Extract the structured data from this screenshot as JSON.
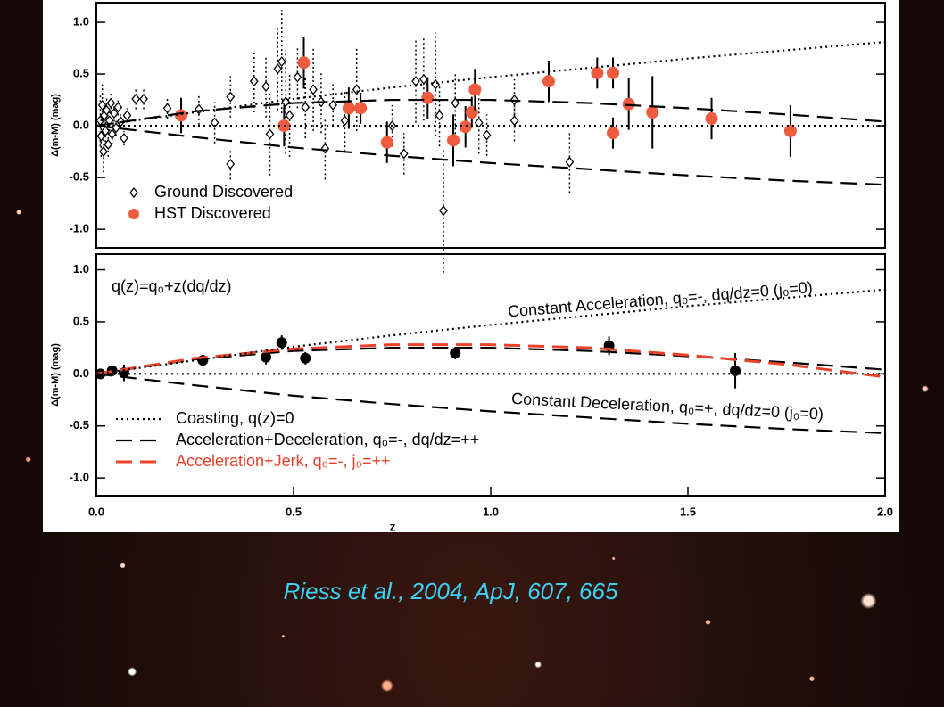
{
  "chart_data": [
    {
      "type": "scatter",
      "y_label": "Δ(m-M) (mag)",
      "xlim": [
        0,
        2.0
      ],
      "ylim": [
        -1.18,
        1.19
      ],
      "yticks": [
        {
          "value": 1.0,
          "label": "1.0"
        },
        {
          "value": 0.5,
          "label": "0.5"
        },
        {
          "value": 0.0,
          "label": "0.0"
        },
        {
          "value": -0.5,
          "label": "-0.5"
        },
        {
          "value": -1.0,
          "label": "-1.0"
        }
      ],
      "legend": "lower left",
      "series": [
        {
          "name": "Ground Discovered",
          "kind": "points",
          "marker": "diamond",
          "color": "#000000",
          "error_dash": true,
          "x": [
            0.01,
            0.012,
            0.015,
            0.018,
            0.02,
            0.023,
            0.026,
            0.03,
            0.033,
            0.037,
            0.04,
            0.045,
            0.05,
            0.055,
            0.062,
            0.07,
            0.078,
            0.1,
            0.12,
            0.18,
            0.26,
            0.3,
            0.34,
            0.34,
            0.4,
            0.43,
            0.44,
            0.46,
            0.47,
            0.48,
            0.49,
            0.51,
            0.53,
            0.55,
            0.57,
            0.58,
            0.6,
            0.63,
            0.66,
            0.75,
            0.78,
            0.81,
            0.83,
            0.86,
            0.87,
            0.88,
            0.91,
            0.97,
            0.99,
            1.06,
            1.06,
            1.2
          ],
          "values": [
            0.05,
            -0.1,
            0.2,
            -0.25,
            0.1,
            -0.05,
            0.15,
            -0.18,
            0.05,
            0.22,
            -0.08,
            0.12,
            -0.02,
            0.18,
            0.04,
            -0.12,
            0.1,
            0.26,
            0.26,
            0.17,
            0.16,
            0.03,
            0.28,
            -0.37,
            0.43,
            0.38,
            -0.08,
            0.55,
            0.62,
            0.23,
            0.1,
            0.47,
            0.18,
            0.35,
            0.23,
            -0.22,
            0.2,
            0.05,
            0.35,
            0.0,
            -0.27,
            0.43,
            0.45,
            0.4,
            0.1,
            -0.82,
            0.22,
            0.03,
            -0.09,
            0.25,
            0.05,
            -0.35
          ],
          "errors": [
            0.25,
            0.2,
            0.2,
            0.2,
            0.15,
            0.15,
            0.12,
            0.12,
            0.1,
            0.1,
            0.1,
            0.08,
            0.08,
            0.08,
            0.07,
            0.07,
            0.07,
            0.1,
            0.1,
            0.1,
            0.15,
            0.2,
            0.2,
            0.15,
            0.3,
            0.3,
            0.4,
            0.4,
            0.5,
            0.5,
            0.4,
            0.3,
            0.3,
            0.4,
            0.3,
            0.3,
            0.2,
            0.3,
            0.4,
            0.2,
            0.2,
            0.4,
            0.4,
            0.5,
            0.3,
            0.6,
            0.3,
            0.3,
            0.2,
            0.2,
            0.2,
            0.3
          ]
        },
        {
          "name": "HST Discovered",
          "kind": "points",
          "marker": "circle",
          "color": "#ef5b3e",
          "error_dash": false,
          "x": [
            0.215,
            0.476,
            0.526,
            0.64,
            0.67,
            0.737,
            0.84,
            0.905,
            0.936,
            0.952,
            0.96,
            1.147,
            1.27,
            1.31,
            1.31,
            1.35,
            1.41,
            1.56,
            1.76
          ],
          "values": [
            0.1,
            0.0,
            0.61,
            0.17,
            0.17,
            -0.16,
            0.27,
            -0.14,
            -0.01,
            0.13,
            0.35,
            0.43,
            0.51,
            0.51,
            -0.07,
            0.21,
            0.13,
            0.07,
            -0.05
          ],
          "errors": [
            0.17,
            0.2,
            0.25,
            0.2,
            0.15,
            0.2,
            0.2,
            0.25,
            0.2,
            0.15,
            0.2,
            0.2,
            0.15,
            0.15,
            0.15,
            0.25,
            0.35,
            0.2,
            0.25
          ]
        },
        {
          "kind": "line",
          "dash": "dotted",
          "color": "#000000",
          "x": [
            0,
            2.0
          ],
          "values": [
            0,
            0
          ]
        },
        {
          "kind": "line",
          "dash": "dotted",
          "color": "#000000",
          "x": [
            0,
            0.25,
            0.5,
            0.75,
            1.0,
            1.25,
            1.5,
            1.75,
            2.0
          ],
          "values": [
            0,
            0.13,
            0.26,
            0.37,
            0.47,
            0.56,
            0.65,
            0.73,
            0.81
          ]
        },
        {
          "kind": "line",
          "dash": "dashed",
          "color": "#000000",
          "x": [
            0,
            0.25,
            0.5,
            0.75,
            1.0,
            1.25,
            1.5,
            1.75,
            2.0
          ],
          "values": [
            0,
            0.14,
            0.22,
            0.25,
            0.25,
            0.22,
            0.17,
            0.11,
            0.04
          ]
        },
        {
          "kind": "line",
          "dash": "dashed",
          "color": "#000000",
          "x": [
            0,
            0.25,
            0.5,
            0.75,
            1.0,
            1.25,
            1.5,
            1.75,
            2.0
          ],
          "values": [
            0,
            -0.11,
            -0.21,
            -0.29,
            -0.36,
            -0.42,
            -0.48,
            -0.53,
            -0.57
          ]
        }
      ]
    },
    {
      "type": "scatter",
      "y_label": "Δ(m-M) (mag)",
      "x_label": "z",
      "xlim": [
        0,
        2.0
      ],
      "ylim": [
        -1.17,
        1.15
      ],
      "xticks": [
        {
          "value": 0,
          "label": "0.0"
        },
        {
          "value": 0.5,
          "label": "0.5"
        },
        {
          "value": 1.0,
          "label": "1.0"
        },
        {
          "value": 1.5,
          "label": "1.5"
        },
        {
          "value": 2.0,
          "label": "2.0"
        }
      ],
      "yticks": [
        {
          "value": 1.0,
          "label": "1.0"
        },
        {
          "value": 0.5,
          "label": "0.5"
        },
        {
          "value": 0.0,
          "label": "0.0"
        },
        {
          "value": -0.5,
          "label": "-0.5"
        },
        {
          "value": -1.0,
          "label": "-1.0"
        }
      ],
      "legend": "lower left",
      "annotations": [
        "q(z)=q₀+z(dq/dz)",
        "Constant Acceleration, q₀=-, dq/dz=0 (j₀=0)",
        "Constant Deceleration, q₀=+, dq/dz=0 (j₀=0)"
      ],
      "series": [
        {
          "kind": "points",
          "marker": "circle",
          "color": "#000000",
          "error_dash": false,
          "x": [
            0.01,
            0.04,
            0.07,
            0.27,
            0.43,
            0.47,
            0.53,
            0.91,
            1.3,
            1.62
          ],
          "values": [
            0.0,
            0.03,
            0.01,
            0.13,
            0.16,
            0.3,
            0.15,
            0.2,
            0.27,
            0.03
          ],
          "errors": [
            0.05,
            0.04,
            0.08,
            0.05,
            0.07,
            0.07,
            0.06,
            0.06,
            0.09,
            0.17
          ]
        },
        {
          "name": "Coasting, q(z)=0",
          "kind": "line",
          "dash": "dotted",
          "color": "#000000",
          "x": [
            0,
            2.0
          ],
          "values": [
            0,
            0
          ]
        },
        {
          "name": "Acceleration+Deceleration, q₀=-, dq/dz=++",
          "kind": "line",
          "dash": "dashed",
          "color": "#000000",
          "x": [
            0,
            0.25,
            0.5,
            0.75,
            1.0,
            1.25,
            1.5,
            1.75,
            2.0
          ],
          "values": [
            0,
            0.14,
            0.22,
            0.25,
            0.25,
            0.22,
            0.17,
            0.11,
            0.04
          ]
        },
        {
          "name": "Acceleration+Jerk, q₀=-, j₀=++",
          "kind": "line",
          "dash": "dashed",
          "color": "#e8432a",
          "x": [
            0,
            0.25,
            0.5,
            0.75,
            1.0,
            1.25,
            1.5,
            1.75,
            2.0
          ],
          "values": [
            0,
            0.15,
            0.24,
            0.28,
            0.28,
            0.25,
            0.18,
            0.09,
            -0.03
          ]
        },
        {
          "kind": "line",
          "dash": "dotted",
          "color": "#000000",
          "x": [
            0,
            0.25,
            0.5,
            0.75,
            1.0,
            1.25,
            1.5,
            1.75,
            2.0
          ],
          "values": [
            0,
            0.13,
            0.26,
            0.37,
            0.47,
            0.56,
            0.65,
            0.73,
            0.81
          ]
        },
        {
          "kind": "line",
          "dash": "dashed",
          "color": "#000000",
          "x": [
            0,
            0.25,
            0.5,
            0.75,
            1.0,
            1.25,
            1.5,
            1.75,
            2.0
          ],
          "values": [
            0,
            -0.11,
            -0.21,
            -0.29,
            -0.36,
            -0.42,
            -0.48,
            -0.53,
            -0.57
          ]
        }
      ]
    }
  ],
  "caption": "Riess et al., 2004, ApJ, 607, 665"
}
